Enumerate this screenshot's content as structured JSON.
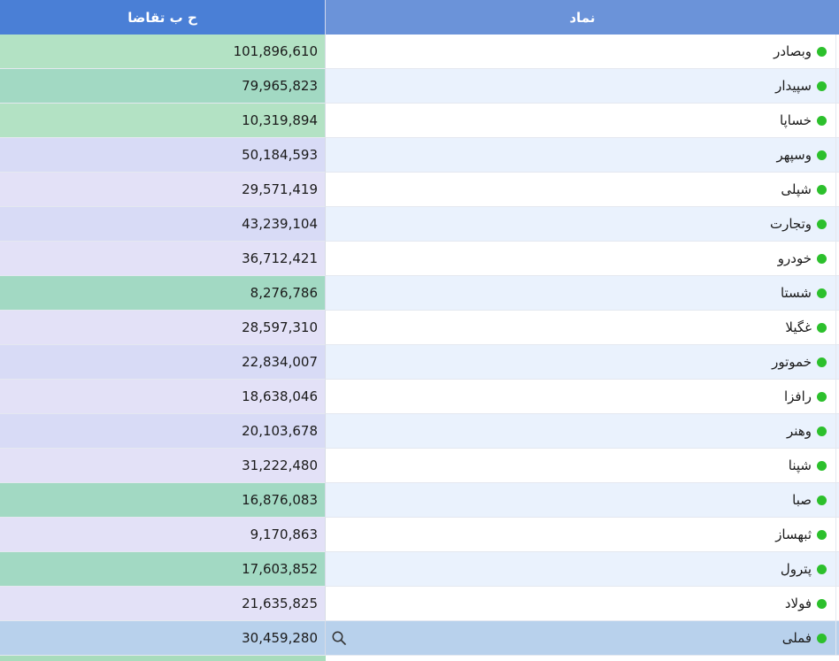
{
  "columns": {
    "symbol": "نماد",
    "demand": "ح ب تقاضا"
  },
  "colors": {
    "header_demand": "#4a7fd6",
    "header_symbol": "#6b93d9",
    "status_dot": "#2cc02c",
    "selected_row": "#b8d1ec",
    "stripe_light": "#ffffff",
    "stripe_blue": "#eaf2fd",
    "green_light": "#b3e2c4",
    "green_mid": "#a2d9c3",
    "lavender_light": "#e3e1f7",
    "lavender_mid": "#d8dbf6"
  },
  "rows": [
    {
      "symbol": "وبصادر",
      "demand": "101,896,610",
      "demand_color": "#b3e2c4",
      "symbol_bg": "#ffffff"
    },
    {
      "symbol": "سپیدار",
      "demand": "79,965,823",
      "demand_color": "#a2d9c3",
      "symbol_bg": "#eaf2fd"
    },
    {
      "symbol": "خساپا",
      "demand": "10,319,894",
      "demand_color": "#b3e2c4",
      "symbol_bg": "#ffffff"
    },
    {
      "symbol": "وسپهر",
      "demand": "50,184,593",
      "demand_color": "#d8dbf6",
      "symbol_bg": "#eaf2fd"
    },
    {
      "symbol": "شپلی",
      "demand": "29,571,419",
      "demand_color": "#e3e1f7",
      "symbol_bg": "#ffffff"
    },
    {
      "symbol": "وتجارت",
      "demand": "43,239,104",
      "demand_color": "#d8dbf6",
      "symbol_bg": "#eaf2fd"
    },
    {
      "symbol": "خودرو",
      "demand": "36,712,421",
      "demand_color": "#e3e1f7",
      "symbol_bg": "#ffffff"
    },
    {
      "symbol": "شستا",
      "demand": "8,276,786",
      "demand_color": "#a2d9c3",
      "symbol_bg": "#eaf2fd"
    },
    {
      "symbol": "غگیلا",
      "demand": "28,597,310",
      "demand_color": "#e3e1f7",
      "symbol_bg": "#ffffff"
    },
    {
      "symbol": "خموتور",
      "demand": "22,834,007",
      "demand_color": "#d8dbf6",
      "symbol_bg": "#eaf2fd"
    },
    {
      "symbol": "رافزا",
      "demand": "18,638,046",
      "demand_color": "#e3e1f7",
      "symbol_bg": "#ffffff"
    },
    {
      "symbol": "وهنر",
      "demand": "20,103,678",
      "demand_color": "#d8dbf6",
      "symbol_bg": "#eaf2fd"
    },
    {
      "symbol": "شپنا",
      "demand": "31,222,480",
      "demand_color": "#e3e1f7",
      "symbol_bg": "#ffffff"
    },
    {
      "symbol": "صبا",
      "demand": "16,876,083",
      "demand_color": "#a2d9c3",
      "symbol_bg": "#eaf2fd"
    },
    {
      "symbol": "ثبهساز",
      "demand": "9,170,863",
      "demand_color": "#e3e1f7",
      "symbol_bg": "#ffffff"
    },
    {
      "symbol": "پترول",
      "demand": "17,603,852",
      "demand_color": "#a2d9c3",
      "symbol_bg": "#eaf2fd"
    },
    {
      "symbol": "فولاد",
      "demand": "21,635,825",
      "demand_color": "#e3e1f7",
      "symbol_bg": "#ffffff"
    },
    {
      "symbol": "فملی",
      "demand": "30,459,280",
      "demand_color": "#b8d1ec",
      "symbol_bg": "#b8d1ec",
      "selected": true,
      "icon": "search-icon"
    }
  ]
}
